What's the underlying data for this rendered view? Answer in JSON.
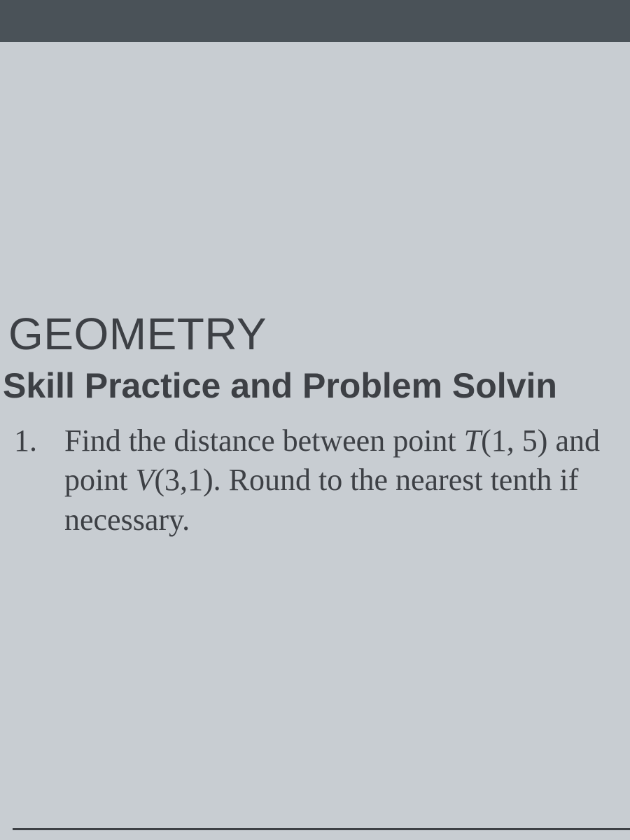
{
  "colors": {
    "page_background": "#c8cdd2",
    "top_bar_background": "#4a5258",
    "text_primary": "#3d4045"
  },
  "typography": {
    "heading_family": "Arial, Helvetica, sans-serif",
    "body_family": "Georgia, 'Times New Roman', serif",
    "heading_size_pt": 48,
    "subheading_size_pt": 38,
    "body_size_pt": 33
  },
  "document": {
    "heading": "GEOMETRY",
    "subheading": "Skill Practice and Problem Solvin",
    "question": {
      "number": "1.",
      "text_prefix": "Find the distance between point ",
      "point1_label": "T",
      "point1_coords": "(1, 5)",
      "text_mid": " and point ",
      "point2_label": "V",
      "point2_coords": "(3,1)",
      "text_suffix": ".  Round to the nearest tenth if necessary."
    }
  }
}
